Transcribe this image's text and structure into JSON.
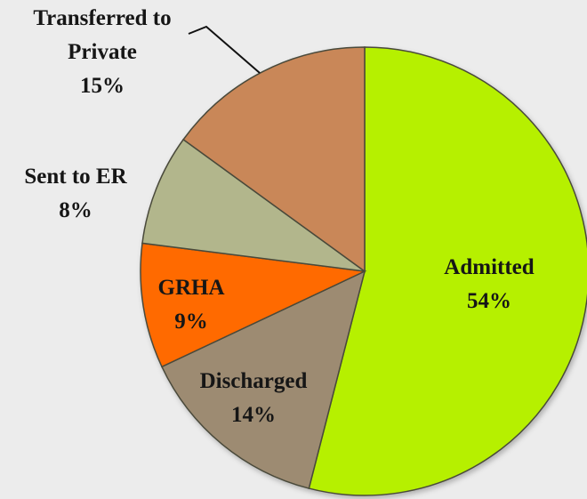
{
  "chart_data": {
    "type": "pie",
    "categories": [
      "Admitted",
      "Discharged",
      "GRHA",
      "Sent to ER",
      "Transferred to Private"
    ],
    "values": [
      54,
      14,
      9,
      8,
      15
    ],
    "value_labels": [
      "54%",
      "14%",
      "9%",
      "8%",
      "15%"
    ],
    "colors": [
      "#b6f000",
      "#9d8b72",
      "#ff6a00",
      "#b2b68c",
      "#c98758"
    ],
    "start_angle": 90,
    "direction": "clockwise"
  }
}
